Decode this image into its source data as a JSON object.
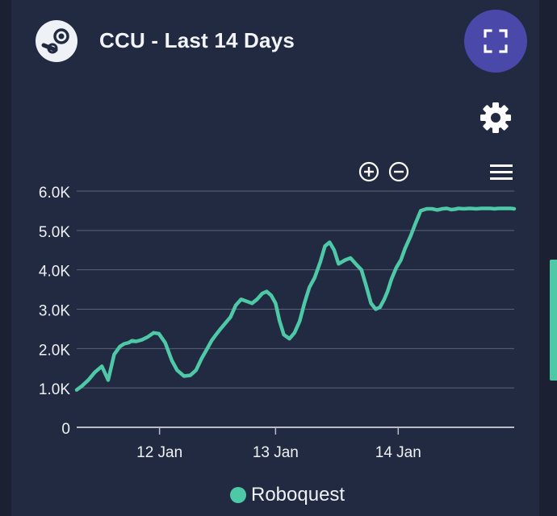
{
  "header": {
    "title": "CCU - Last 14 Days",
    "logo_icon": "steam-icon",
    "fullscreen_icon": "fullscreen-icon"
  },
  "toolbar": {
    "settings_icon": "gear-icon",
    "zoom_in_icon": "zoom-in-icon",
    "zoom_out_icon": "zoom-out-icon",
    "menu_icon": "hamburger-menu-icon"
  },
  "colors": {
    "background": "#212a40",
    "accent_button": "#4a48a8",
    "series": "#4ec9a8",
    "grid": "#5c6478",
    "text": "#eef1f5"
  },
  "chart_data": {
    "type": "line",
    "title": "",
    "xlabel": "",
    "ylabel": "",
    "ylim": [
      0,
      6000
    ],
    "yticks": [
      0,
      1000,
      2000,
      3000,
      4000,
      5000,
      6000
    ],
    "ytick_labels": [
      "0",
      "1.0K",
      "2.0K",
      "3.0K",
      "4.0K",
      "5.0K",
      "6.0K"
    ],
    "xlim": [
      11.53,
      12.85
    ],
    "xticks": [
      11.78,
      12.13,
      12.5
    ],
    "xtick_labels": [
      "12 Jan",
      "13 Jan",
      "14 Jan"
    ],
    "legend_position": "bottom",
    "grid": true,
    "series": [
      {
        "name": "Roboquest",
        "x": [
          11.53,
          11.546,
          11.565,
          11.585,
          11.606,
          11.625,
          11.643,
          11.66,
          11.673,
          11.687,
          11.697,
          11.709,
          11.726,
          11.745,
          11.762,
          11.778,
          11.797,
          11.817,
          11.833,
          11.854,
          11.873,
          11.89,
          11.907,
          11.924,
          11.937,
          11.95,
          11.964,
          11.979,
          11.994,
          12.01,
          12.026,
          12.043,
          12.059,
          12.074,
          12.09,
          12.103,
          12.117,
          12.13,
          12.142,
          12.155,
          12.172,
          12.187,
          12.203,
          12.217,
          12.232,
          12.248,
          12.265,
          12.279,
          12.293,
          12.307,
          12.32,
          12.34,
          12.356,
          12.372,
          12.389,
          12.403,
          12.418,
          12.432,
          12.445,
          12.458,
          12.468,
          12.479,
          12.494,
          12.508,
          12.521,
          12.537,
          12.553,
          12.568,
          12.586,
          12.602,
          12.618,
          12.633,
          12.647,
          12.66,
          12.671,
          12.682,
          12.697,
          12.716,
          12.736,
          12.751,
          12.765,
          12.778,
          12.79,
          12.802,
          12.815,
          12.827,
          12.84,
          12.85
        ],
        "values": [
          950,
          1050,
          1200,
          1400,
          1550,
          1200,
          1850,
          2050,
          2120,
          2150,
          2200,
          2180,
          2220,
          2300,
          2400,
          2380,
          2150,
          1700,
          1450,
          1300,
          1320,
          1450,
          1750,
          2000,
          2200,
          2350,
          2500,
          2650,
          2800,
          3100,
          3250,
          3200,
          3150,
          3250,
          3400,
          3450,
          3350,
          3150,
          2700,
          2350,
          2250,
          2400,
          2700,
          3150,
          3550,
          3800,
          4200,
          4600,
          4700,
          4500,
          4150,
          4250,
          4300,
          4150,
          4000,
          3600,
          3150,
          3000,
          3050,
          3250,
          3450,
          3750,
          4050,
          4250,
          4550,
          4850,
          5200,
          5500,
          5550,
          5550,
          5520,
          5550,
          5560,
          5530,
          5540,
          5560,
          5550,
          5560,
          5550,
          5560,
          5560,
          5560,
          5550,
          5560,
          5560,
          5560,
          5560,
          5550
        ]
      }
    ]
  }
}
